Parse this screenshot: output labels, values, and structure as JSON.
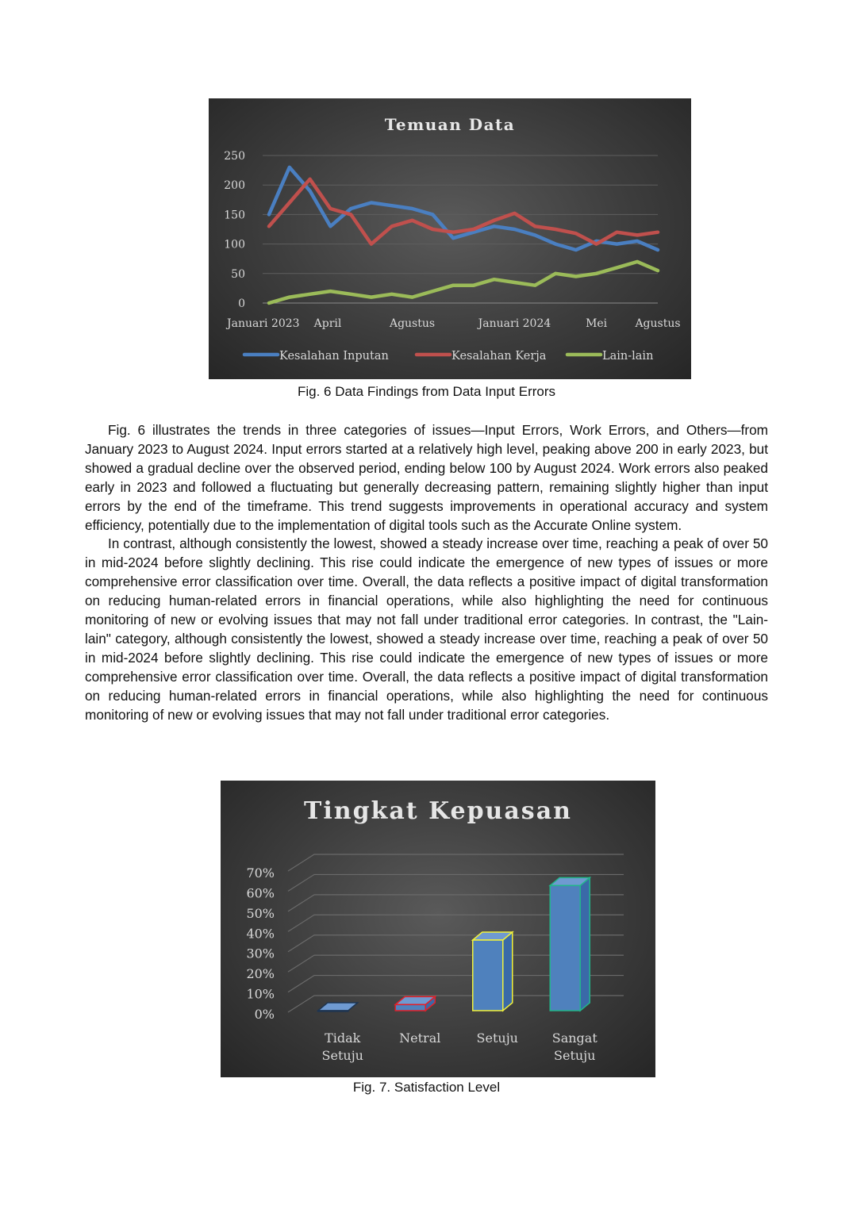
{
  "figure6": {
    "caption": "Fig. 6 Data Findings from Data Input Errors",
    "chart_data": {
      "type": "line",
      "title": "Temuan Data",
      "xlabel": "",
      "ylabel": "",
      "ylim": [
        0,
        250
      ],
      "yticks": [
        "0",
        "50",
        "100",
        "150",
        "200",
        "250"
      ],
      "xtick_labels": [
        "Januari 2023",
        "April",
        "Agustus",
        "Januari 2024",
        "Mei",
        "Agustus"
      ],
      "xtick_index": [
        0,
        3,
        7,
        12,
        16,
        19
      ],
      "grid": "horizontal",
      "legend_position": "bottom",
      "series": [
        {
          "name": "Kesalahan Inputan",
          "color": "#4a7fc1",
          "values": [
            150,
            230,
            190,
            130,
            160,
            170,
            165,
            160,
            150,
            110,
            120,
            130,
            125,
            115,
            100,
            90,
            105,
            100,
            105,
            90
          ]
        },
        {
          "name": "Kesalahan Kerja",
          "color": "#c0504d",
          "values": [
            130,
            170,
            210,
            160,
            150,
            100,
            130,
            140,
            125,
            120,
            125,
            140,
            152,
            130,
            125,
            118,
            100,
            120,
            115,
            120
          ]
        },
        {
          "name": "Lain-lain",
          "color": "#9bbb59",
          "values": [
            0,
            10,
            15,
            20,
            15,
            10,
            15,
            10,
            20,
            30,
            30,
            40,
            35,
            30,
            50,
            45,
            50,
            60,
            70,
            55
          ]
        }
      ]
    }
  },
  "paragraphs": [
    "Fig. 6 illustrates the trends in three categories of issues—Input Errors, Work Errors, and Others—from January 2023 to August 2024. Input errors started at a relatively high level, peaking above 200 in early 2023, but showed a gradual decline over the observed period, ending below 100 by August 2024. Work errors also peaked early in 2023 and followed a fluctuating but generally decreasing pattern, remaining slightly higher than input errors by the end of the timeframe. This trend suggests improvements in operational accuracy and system efficiency, potentially due to the implementation of digital tools such as the Accurate Online system.",
    "In contrast, although consistently the lowest, showed a steady increase over time, reaching a peak of over 50 in mid-2024 before slightly declining. This rise could indicate the emergence of new types of issues or more comprehensive error classification over time. Overall, the data reflects a positive impact of digital transformation on reducing human-related errors in financial operations, while also highlighting the need for continuous monitoring of new or evolving issues that may not fall under traditional error categories. In contrast, the \"Lain-lain\" category, although consistently the lowest, showed a steady increase over time, reaching a peak of over 50 in mid-2024 before slightly declining. This rise could indicate the emergence of new types of issues or more comprehensive error classification over time. Overall, the data reflects a positive impact of digital transformation on reducing human-related errors in financial operations, while also highlighting the need for continuous monitoring of new or evolving issues that may not fall under traditional error categories."
  ],
  "figure7": {
    "caption": "Fig. 7. Satisfaction Level",
    "chart_data": {
      "type": "bar",
      "title": "Tingkat Kepuasan",
      "xlabel": "",
      "ylabel": "",
      "ylim": [
        0,
        70
      ],
      "yticks": [
        "0%",
        "10%",
        "20%",
        "30%",
        "40%",
        "50%",
        "60%",
        "70%"
      ],
      "grid": "horizontal",
      "style": "3d-column",
      "categories": [
        [
          "Tidak",
          "Setuju"
        ],
        [
          "Netral"
        ],
        [
          "Setuju"
        ],
        [
          "Sangat",
          "Setuju"
        ]
      ],
      "values": [
        0,
        3,
        35,
        62
      ],
      "bar_color": "#4f81bd",
      "edge_colors": [
        "#1f3550",
        "#e0202a",
        "#f2f23a",
        "#22b58a"
      ]
    }
  }
}
